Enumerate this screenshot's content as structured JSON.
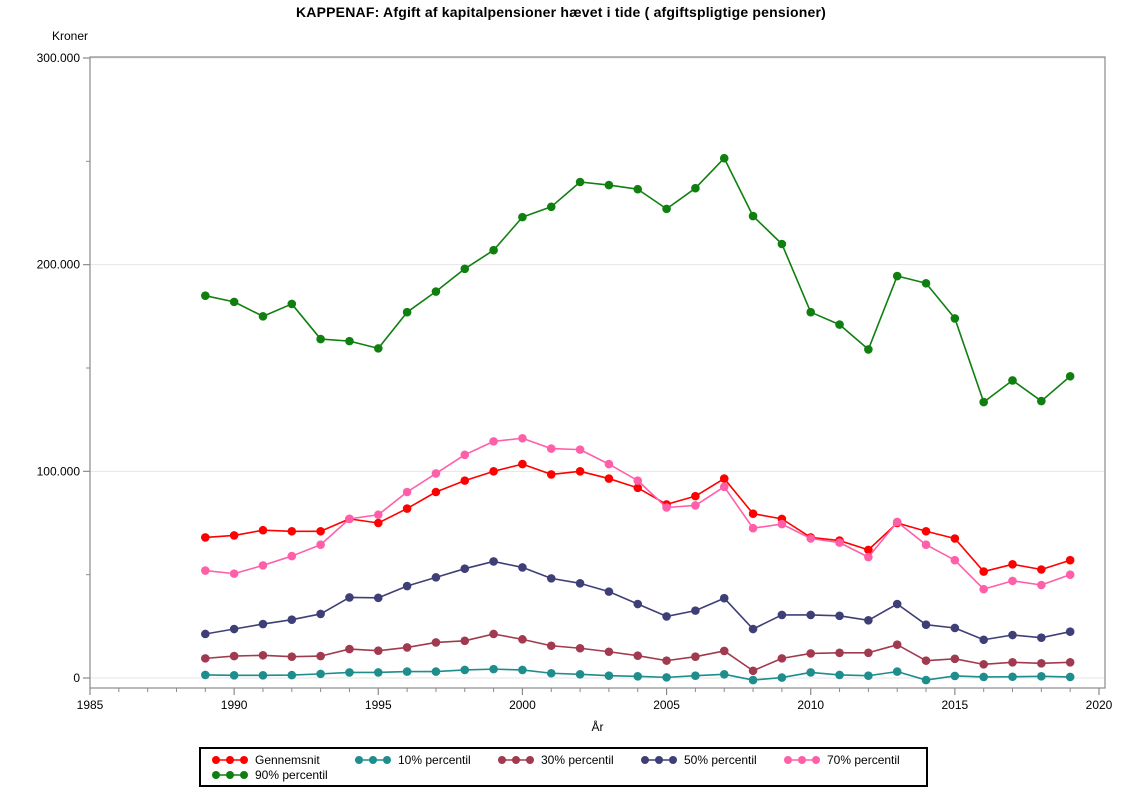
{
  "title": "KAPPENAF: Afgift af kapitalpensioner hævet i tide ( afgiftspligtige pensioner)",
  "axes": {
    "ylabel": "Kroner",
    "xlabel": "År",
    "frame_color": "#8a8a8a",
    "grid_color": "#e4e4e4",
    "text_color": "#000000"
  },
  "chart_data": {
    "type": "line",
    "title": "KAPPENAF: Afgift af kapitalpensioner hævet i tide ( afgiftspligtige pensioner)",
    "xlabel": "År",
    "ylabel": "Kroner",
    "xlim": [
      1985,
      2020
    ],
    "ylim": [
      -5000,
      300500
    ],
    "grid": "horizontal-major-only",
    "legend_position": "bottom",
    "x_ticks_major": [
      1985,
      1990,
      1995,
      2000,
      2005,
      2010,
      2015,
      2020
    ],
    "x_minor_step": 1,
    "y_ticks": [
      {
        "value": 0,
        "label": "0"
      },
      {
        "value": 100000,
        "label": "100.000"
      },
      {
        "value": 200000,
        "label": "200.000"
      },
      {
        "value": 300000,
        "label": "300.000"
      }
    ],
    "y_minor_ticks": [
      50000,
      150000,
      250000
    ],
    "x": [
      1989,
      1990,
      1991,
      1992,
      1993,
      1994,
      1995,
      1996,
      1997,
      1998,
      1999,
      2000,
      2001,
      2002,
      2003,
      2004,
      2005,
      2006,
      2007,
      2008,
      2009,
      2010,
      2011,
      2012,
      2013,
      2014,
      2015,
      2016,
      2017,
      2018,
      2019
    ],
    "series": [
      {
        "name": "Gennemsnit",
        "color": "#ff0000",
        "values": [
          68000,
          69000,
          71500,
          71000,
          71000,
          77000,
          75000,
          82000,
          90000,
          95500,
          100000,
          103500,
          98500,
          100000,
          96500,
          92000,
          84000,
          88000,
          96500,
          79500,
          77000,
          68000,
          66500,
          62000,
          75000,
          71000,
          67500,
          51500,
          55000,
          52500,
          57000
        ]
      },
      {
        "name": "10% percentil",
        "color": "#1d8d8d",
        "values": [
          1500,
          1300,
          1300,
          1400,
          2000,
          2700,
          2700,
          3100,
          3100,
          3900,
          4300,
          3900,
          2300,
          1800,
          1100,
          800,
          300,
          1100,
          1800,
          -1000,
          200,
          2700,
          1500,
          1100,
          3100,
          -1000,
          1000,
          500,
          600,
          800,
          500
        ]
      },
      {
        "name": "30% percentil",
        "color": "#a13a4e",
        "values": [
          9500,
          10600,
          11000,
          10300,
          10600,
          14000,
          13200,
          14800,
          17200,
          18000,
          21300,
          18700,
          15600,
          14400,
          12700,
          10800,
          8400,
          10300,
          13100,
          3500,
          9500,
          11900,
          12200,
          12200,
          16100,
          8400,
          9300,
          6600,
          7600,
          7100,
          7600
        ]
      },
      {
        "name": "50% percentil",
        "color": "#3f3f77",
        "values": [
          21300,
          23700,
          26100,
          28200,
          31000,
          39000,
          38800,
          44500,
          48700,
          52900,
          56400,
          53500,
          48200,
          45800,
          41800,
          35800,
          29800,
          32600,
          38600,
          23700,
          30500,
          30500,
          30100,
          27900,
          35800,
          25800,
          24200,
          18500,
          20800,
          19500,
          22400
        ]
      },
      {
        "name": "70% percentil",
        "color": "#ff5fa8",
        "values": [
          52000,
          50500,
          54500,
          59000,
          64500,
          77000,
          79000,
          90000,
          99000,
          108000,
          114500,
          116000,
          111000,
          110500,
          103500,
          95500,
          82500,
          83500,
          92500,
          72500,
          74500,
          67500,
          65500,
          58500,
          75500,
          64500,
          57000,
          43000,
          47000,
          45000,
          50000
        ]
      },
      {
        "name": "90% percentil",
        "color": "#0f800f",
        "values": [
          185000,
          182000,
          175000,
          181000,
          164000,
          163000,
          159500,
          177000,
          187000,
          198000,
          207000,
          223000,
          228000,
          240000,
          238500,
          236500,
          227000,
          237000,
          251500,
          223500,
          210000,
          177000,
          171000,
          159000,
          194500,
          191000,
          174000,
          133500,
          144000,
          134000,
          146000
        ]
      }
    ]
  }
}
